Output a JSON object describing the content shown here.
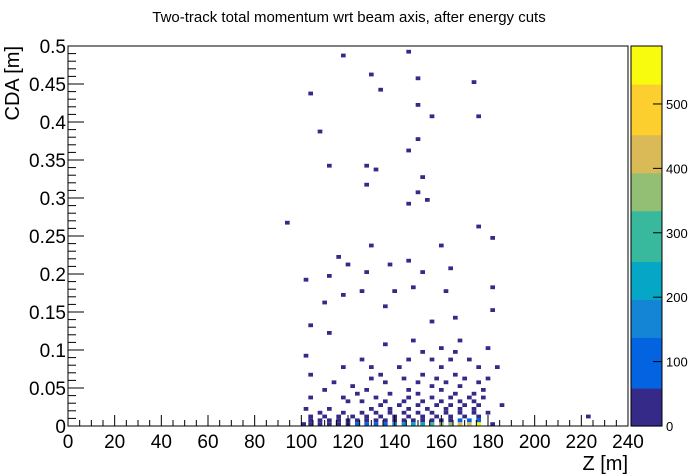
{
  "chart_data": {
    "type": "heatmap",
    "title": "Two-track total momentum wrt beam axis, after energy cuts",
    "xlabel": "Z [m]",
    "ylabel": "CDA [m]",
    "xlim": [
      0,
      240
    ],
    "ylim": [
      0,
      0.5
    ],
    "x_ticks": [
      "0",
      "20",
      "40",
      "60",
      "80",
      "100",
      "120",
      "140",
      "160",
      "180",
      "200",
      "220",
      "240"
    ],
    "y_ticks": [
      "0",
      "0.05",
      "0.1",
      "0.15",
      "0.2",
      "0.25",
      "0.3",
      "0.35",
      "0.4",
      "0.45",
      "0.5"
    ],
    "colorbar": {
      "zlim": [
        0,
        590
      ],
      "ticks": [
        "0",
        "100",
        "200",
        "300",
        "400",
        "500"
      ]
    },
    "bin_width": {
      "x": 2,
      "y": 0.005
    },
    "palette": [
      "#352a87",
      "#0363e1",
      "#1485d4",
      "#06a7c6",
      "#38b99e",
      "#92bf73",
      "#d9ba56",
      "#fcce2e",
      "#f9fb0e"
    ],
    "bins": [
      [
        176,
        0.0025,
        590
      ],
      [
        172,
        0.0025,
        450
      ],
      [
        168,
        0.0025,
        420
      ],
      [
        164,
        0.0025,
        380
      ],
      [
        160,
        0.0025,
        330
      ],
      [
        156,
        0.0025,
        290
      ],
      [
        152,
        0.0025,
        250
      ],
      [
        148,
        0.0025,
        220
      ],
      [
        144,
        0.0025,
        190
      ],
      [
        140,
        0.0025,
        160
      ],
      [
        136,
        0.0025,
        130
      ],
      [
        132,
        0.0025,
        110
      ],
      [
        128,
        0.0025,
        90
      ],
      [
        124,
        0.0025,
        70
      ],
      [
        120,
        0.0025,
        55
      ],
      [
        116,
        0.0025,
        45
      ],
      [
        112,
        0.0025,
        35
      ],
      [
        108,
        0.0025,
        25
      ],
      [
        104,
        0.0025,
        20
      ],
      [
        101,
        0.0025,
        15
      ],
      [
        182,
        0.0025,
        5
      ],
      [
        223,
        0.0125,
        1
      ],
      [
        176,
        0.0075,
        90
      ],
      [
        172,
        0.0075,
        80
      ],
      [
        168,
        0.0075,
        70
      ],
      [
        164,
        0.0075,
        60
      ],
      [
        160,
        0.0075,
        55
      ],
      [
        156,
        0.0075,
        45
      ],
      [
        152,
        0.0075,
        40
      ],
      [
        148,
        0.0075,
        30
      ],
      [
        144,
        0.0075,
        25
      ],
      [
        140,
        0.0075,
        20
      ],
      [
        136,
        0.0075,
        15
      ],
      [
        132,
        0.0075,
        12
      ],
      [
        128,
        0.0075,
        10
      ],
      [
        124,
        0.0075,
        8
      ],
      [
        120,
        0.0075,
        6
      ],
      [
        116,
        0.0075,
        5
      ],
      [
        112,
        0.0075,
        4
      ],
      [
        108,
        0.0075,
        3
      ],
      [
        104,
        0.0075,
        2
      ],
      [
        176,
        0.0125,
        40
      ],
      [
        170,
        0.0125,
        30
      ],
      [
        164,
        0.0125,
        20
      ],
      [
        158,
        0.0125,
        15
      ],
      [
        152,
        0.0125,
        12
      ],
      [
        146,
        0.0125,
        10
      ],
      [
        140,
        0.0125,
        8
      ],
      [
        134,
        0.0125,
        5
      ],
      [
        128,
        0.0125,
        4
      ],
      [
        122,
        0.0125,
        3
      ],
      [
        116,
        0.0125,
        2
      ],
      [
        110,
        0.0125,
        1
      ],
      [
        104,
        0.0125,
        1
      ],
      [
        180,
        0.0175,
        3
      ],
      [
        174,
        0.0175,
        10
      ],
      [
        168,
        0.0175,
        8
      ],
      [
        162,
        0.0175,
        6
      ],
      [
        156,
        0.0175,
        5
      ],
      [
        150,
        0.0175,
        4
      ],
      [
        144,
        0.0175,
        3
      ],
      [
        138,
        0.0175,
        2
      ],
      [
        132,
        0.0175,
        1
      ],
      [
        126,
        0.0175,
        1
      ],
      [
        118,
        0.0175,
        1
      ],
      [
        108,
        0.0175,
        1
      ],
      [
        186,
        0.0275,
        1
      ],
      [
        174,
        0.0225,
        5
      ],
      [
        168,
        0.0225,
        4
      ],
      [
        162,
        0.0225,
        3
      ],
      [
        154,
        0.0225,
        2
      ],
      [
        146,
        0.0225,
        2
      ],
      [
        138,
        0.0225,
        1
      ],
      [
        130,
        0.0225,
        1
      ],
      [
        112,
        0.0225,
        1
      ],
      [
        102,
        0.0225,
        1
      ],
      [
        176,
        0.0275,
        3
      ],
      [
        170,
        0.0275,
        2
      ],
      [
        164,
        0.0275,
        2
      ],
      [
        158,
        0.0275,
        1
      ],
      [
        150,
        0.0275,
        1
      ],
      [
        142,
        0.0275,
        1
      ],
      [
        134,
        0.0275,
        1
      ],
      [
        174,
        0.0325,
        2
      ],
      [
        168,
        0.0325,
        2
      ],
      [
        160,
        0.0325,
        1
      ],
      [
        152,
        0.0325,
        1
      ],
      [
        144,
        0.0325,
        1
      ],
      [
        136,
        0.0325,
        1
      ],
      [
        126,
        0.0325,
        1
      ],
      [
        120,
        0.0325,
        1
      ],
      [
        178,
        0.0375,
        1
      ],
      [
        172,
        0.0375,
        1
      ],
      [
        164,
        0.0375,
        1
      ],
      [
        156,
        0.0375,
        1
      ],
      [
        146,
        0.0375,
        1
      ],
      [
        132,
        0.0375,
        1
      ],
      [
        118,
        0.0375,
        1
      ],
      [
        104,
        0.0375,
        1
      ],
      [
        174,
        0.0425,
        1
      ],
      [
        166,
        0.0425,
        1
      ],
      [
        150,
        0.0425,
        1
      ],
      [
        138,
        0.0425,
        1
      ],
      [
        124,
        0.0425,
        1
      ],
      [
        178,
        0.0475,
        1
      ],
      [
        160,
        0.0475,
        1
      ],
      [
        146,
        0.0475,
        1
      ],
      [
        128,
        0.0475,
        1
      ],
      [
        110,
        0.0475,
        1
      ],
      [
        168,
        0.0525,
        1
      ],
      [
        156,
        0.0525,
        1
      ],
      [
        122,
        0.0525,
        1
      ],
      [
        176,
        0.0575,
        1
      ],
      [
        162,
        0.0575,
        1
      ],
      [
        150,
        0.0575,
        1
      ],
      [
        136,
        0.0575,
        1
      ],
      [
        114,
        0.0575,
        1
      ],
      [
        180,
        0.0625,
        1
      ],
      [
        170,
        0.0625,
        1
      ],
      [
        158,
        0.0625,
        1
      ],
      [
        144,
        0.0625,
        1
      ],
      [
        130,
        0.0625,
        1
      ],
      [
        166,
        0.0675,
        1
      ],
      [
        152,
        0.0675,
        1
      ],
      [
        134,
        0.0675,
        1
      ],
      [
        104,
        0.0675,
        1
      ],
      [
        184,
        0.0775,
        1
      ],
      [
        176,
        0.0775,
        1
      ],
      [
        160,
        0.0775,
        1
      ],
      [
        142,
        0.0775,
        1
      ],
      [
        130,
        0.0775,
        1
      ],
      [
        118,
        0.0775,
        1
      ],
      [
        172,
        0.0875,
        1
      ],
      [
        164,
        0.0875,
        1
      ],
      [
        156,
        0.0875,
        1
      ],
      [
        146,
        0.0875,
        1
      ],
      [
        126,
        0.0875,
        1
      ],
      [
        102,
        0.0925,
        1
      ],
      [
        166,
        0.0975,
        1
      ],
      [
        152,
        0.0975,
        1
      ],
      [
        180,
        0.1025,
        1
      ],
      [
        160,
        0.1025,
        1
      ],
      [
        136,
        0.1075,
        1
      ],
      [
        148,
        0.1125,
        1
      ],
      [
        168,
        0.1125,
        1
      ],
      [
        112,
        0.1225,
        1
      ],
      [
        104,
        0.1325,
        1
      ],
      [
        156,
        0.1375,
        1
      ],
      [
        166,
        0.1425,
        1
      ],
      [
        182,
        0.1525,
        1
      ],
      [
        136,
        0.1575,
        1
      ],
      [
        110,
        0.1625,
        1
      ],
      [
        118,
        0.1725,
        1
      ],
      [
        126,
        0.1775,
        1
      ],
      [
        140,
        0.1775,
        1
      ],
      [
        148,
        0.1825,
        1
      ],
      [
        162,
        0.1775,
        1
      ],
      [
        182,
        0.1825,
        1
      ],
      [
        102,
        0.1925,
        1
      ],
      [
        112,
        0.1975,
        1
      ],
      [
        128,
        0.2025,
        1
      ],
      [
        152,
        0.2025,
        1
      ],
      [
        164,
        0.2075,
        1
      ],
      [
        120,
        0.2125,
        1
      ],
      [
        138,
        0.2125,
        1
      ],
      [
        146,
        0.2175,
        1
      ],
      [
        116,
        0.2225,
        1
      ],
      [
        130,
        0.2375,
        1
      ],
      [
        160,
        0.2375,
        1
      ],
      [
        182,
        0.2475,
        1
      ],
      [
        176,
        0.2625,
        1
      ],
      [
        94,
        0.2675,
        1
      ],
      [
        146,
        0.2925,
        1
      ],
      [
        154,
        0.2975,
        1
      ],
      [
        150,
        0.3075,
        1
      ],
      [
        128,
        0.3175,
        1
      ],
      [
        152,
        0.3275,
        1
      ],
      [
        132,
        0.3375,
        1
      ],
      [
        112,
        0.3425,
        1
      ],
      [
        128,
        0.3425,
        1
      ],
      [
        146,
        0.3625,
        1
      ],
      [
        150,
        0.3775,
        1
      ],
      [
        108,
        0.3875,
        1
      ],
      [
        156,
        0.4075,
        1
      ],
      [
        176,
        0.4075,
        1
      ],
      [
        150,
        0.4225,
        1
      ],
      [
        104,
        0.4375,
        1
      ],
      [
        134,
        0.4425,
        1
      ],
      [
        174,
        0.4525,
        1
      ],
      [
        150,
        0.4575,
        1
      ],
      [
        130,
        0.4625,
        1
      ],
      [
        118,
        0.4875,
        1
      ],
      [
        146,
        0.4925,
        1
      ]
    ]
  }
}
